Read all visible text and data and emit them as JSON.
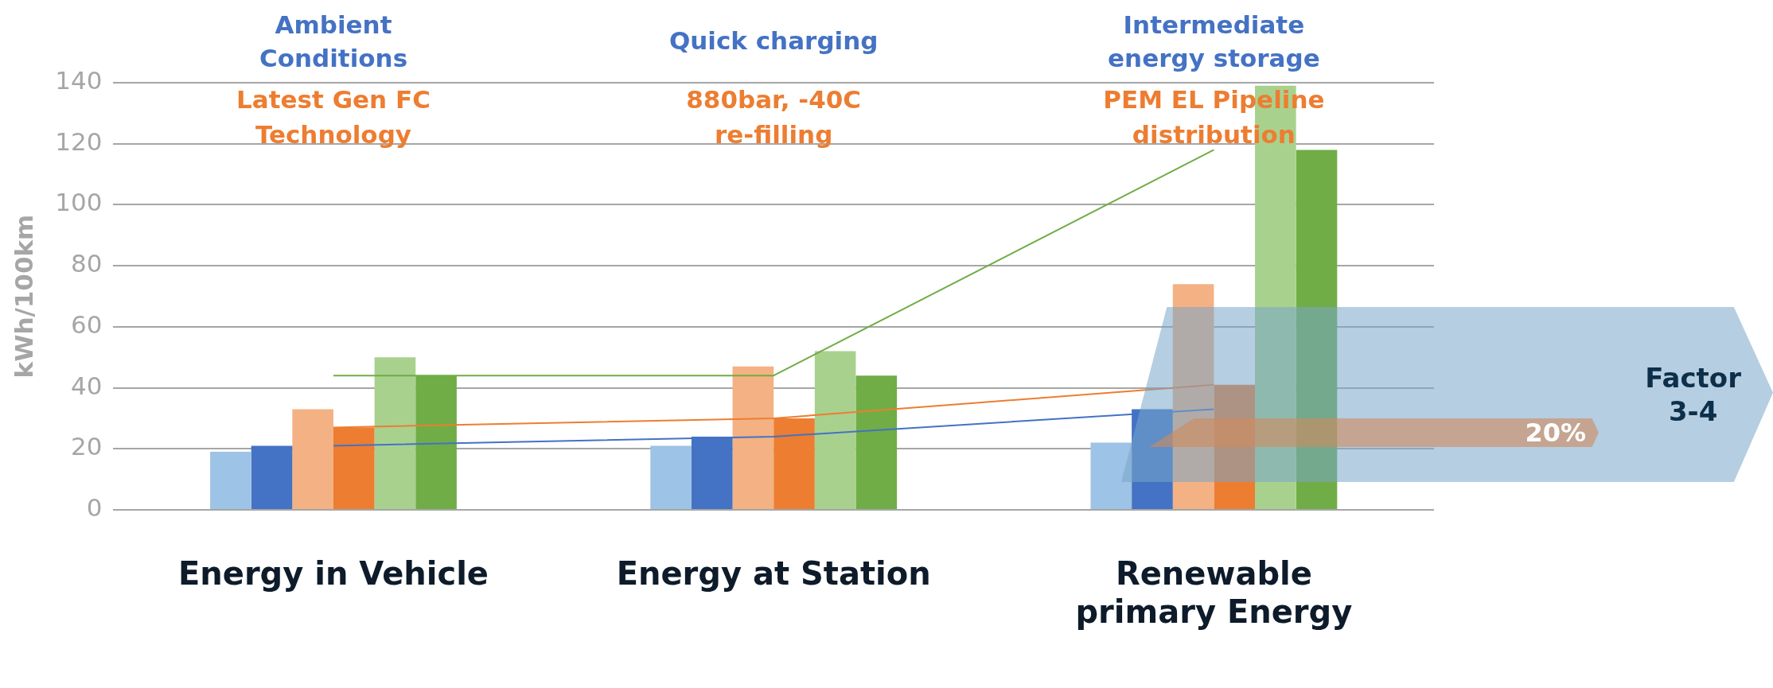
{
  "chart_data": {
    "type": "bar",
    "ylabel": "kWh/100km",
    "categories": [
      "Energy in Vehicle",
      "Energy at Station",
      "Renewable primary Energy"
    ],
    "series": [
      {
        "color": "#9dc3e6",
        "values": [
          19,
          21,
          22
        ]
      },
      {
        "color": "#4472c4",
        "values": [
          21,
          24,
          33
        ]
      },
      {
        "color": "#f4b183",
        "values": [
          33,
          47,
          74
        ]
      },
      {
        "color": "#ed7d31",
        "values": [
          27,
          30,
          41
        ]
      },
      {
        "color": "#a9d18e",
        "values": [
          50,
          52,
          139
        ]
      },
      {
        "color": "#70ad47",
        "values": [
          44,
          44,
          118
        ]
      },
      {
        "type": "line",
        "color": "#4472c4",
        "values": [
          21,
          24,
          33
        ]
      },
      {
        "type": "line",
        "color": "#ed7d31",
        "values": [
          27,
          30,
          41
        ]
      },
      {
        "type": "line",
        "color": "#70ad47",
        "values": [
          44,
          44,
          118
        ]
      }
    ],
    "ylim": [
      0,
      140
    ],
    "yticks": [
      0,
      20,
      40,
      60,
      80,
      100,
      120,
      140
    ],
    "grid": "y",
    "legend": false,
    "marker": "none",
    "annotations": [
      "Ambient Conditions",
      "Latest Gen FC Technology",
      "Quick charging",
      "880bar, -40C re-filling",
      "Intermediate energy storage",
      "PEM EL Pipeline distribution",
      "20%",
      "Factor 3-4"
    ]
  }
}
